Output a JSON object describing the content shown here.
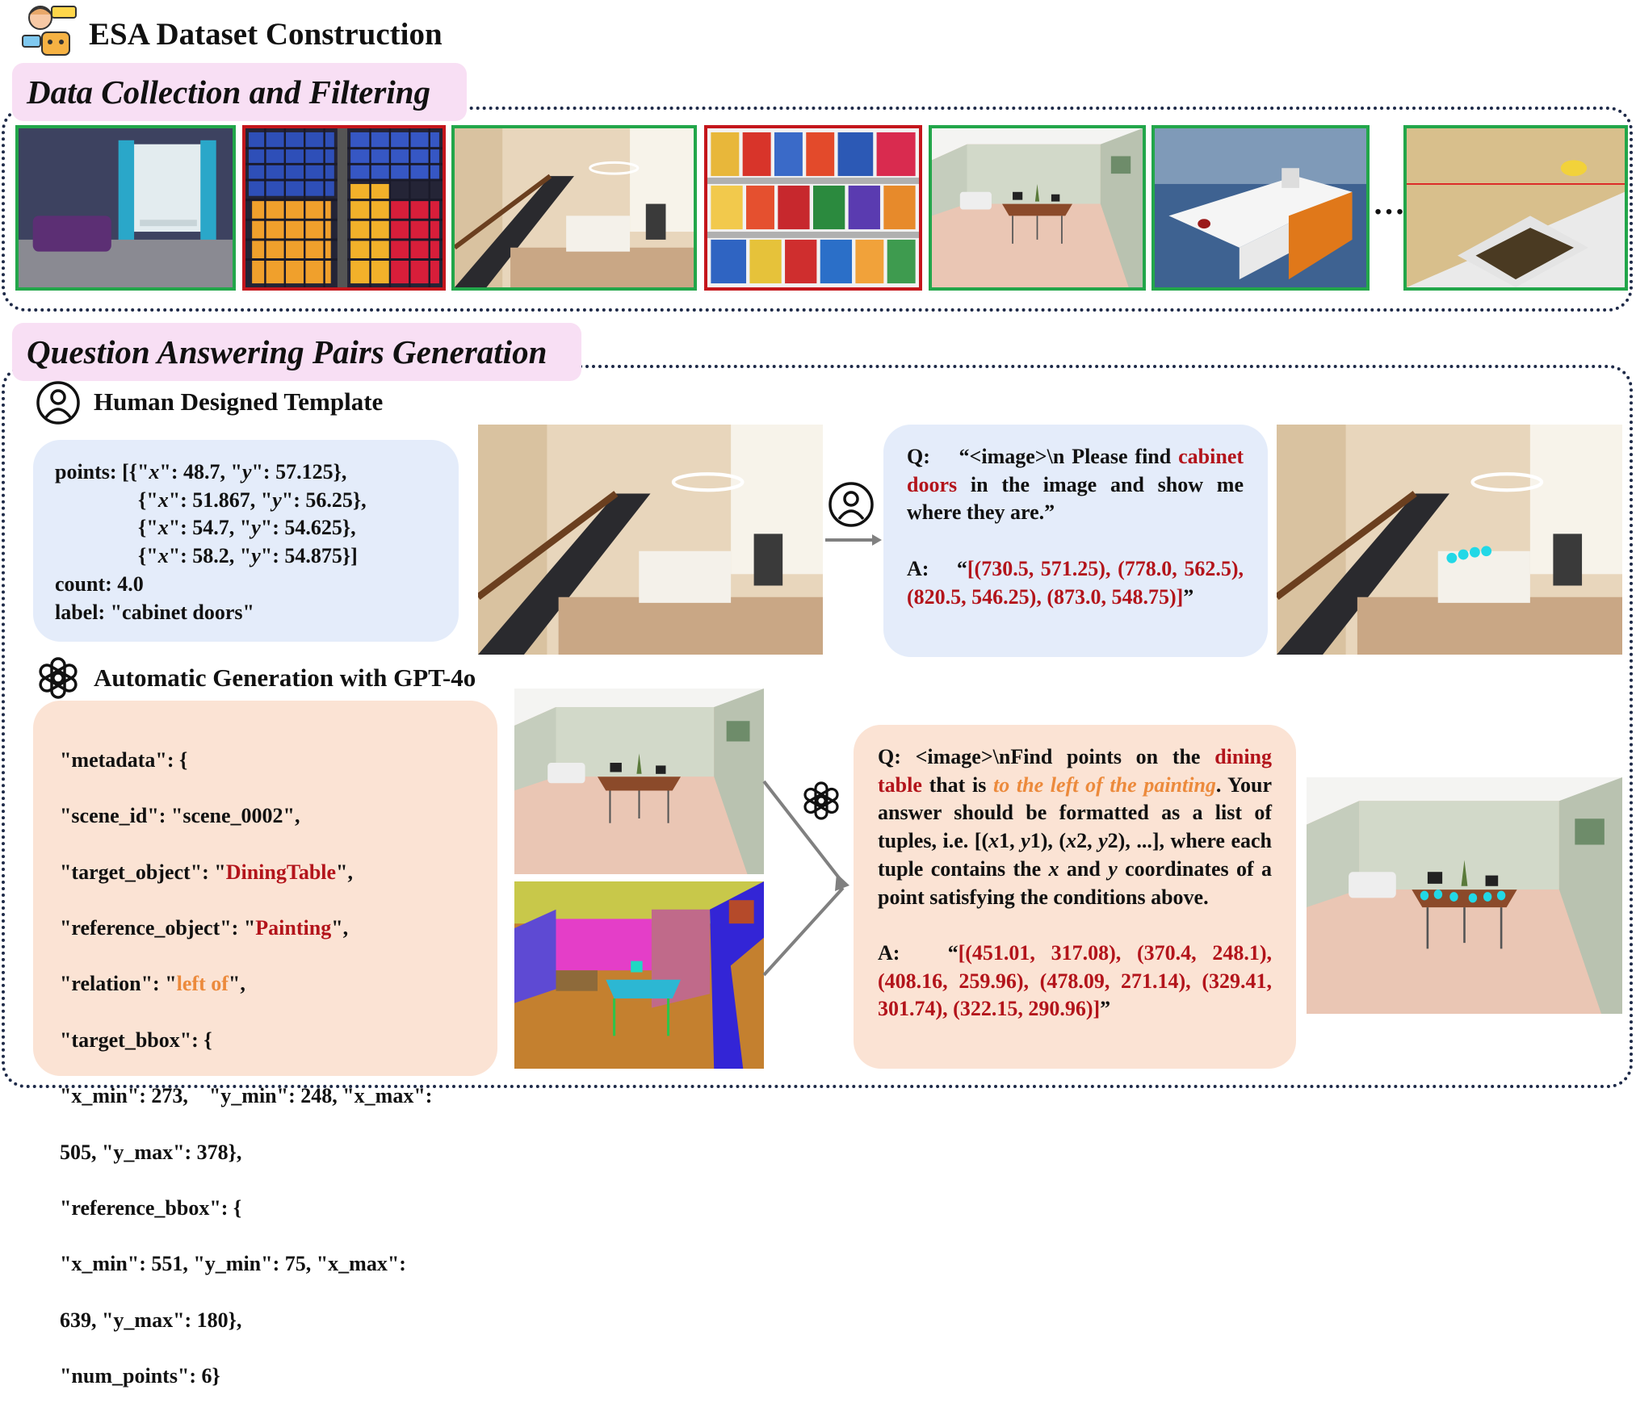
{
  "header": {
    "title": "ESA Dataset Construction"
  },
  "collection": {
    "title": "Data Collection and Filtering",
    "ellipsis": "…"
  },
  "qa": {
    "title": "Question Answering Pairs Generation",
    "template": {
      "title": "Human Designed Template",
      "code": [
        [
          "points: [{\"",
          "x",
          "\": 48.7, \"",
          "y",
          "\": 57.125},"
        ],
        [
          "{\"",
          "x",
          "\": 51.867, \"",
          "y",
          "\": 56.25},"
        ],
        [
          "{\"",
          "x",
          "\": 54.7, \"",
          "y",
          "\": 54.625},"
        ],
        [
          "{\"",
          "x",
          "\": 58.2, \"",
          "y",
          "\": 54.875}]"
        ],
        [
          "count: 4.0"
        ],
        [
          "label: \"cabinet doors\""
        ]
      ],
      "question": [
        "Q:",
        "“<image>\\n Please find",
        "cabinet doors",
        "in the image and show me where they are.”"
      ],
      "answer": [
        "A:",
        "“",
        "[(730.5, 571.25), (778.0, 562.5), (820.5, 546.25), (873.0, 548.75)]",
        "”"
      ]
    },
    "gpt": {
      "title": "Automatic Generation with GPT-4o",
      "code": [
        [
          "\"metadata\": {"
        ],
        [
          "\"scene_id\": \"scene_0002\","
        ],
        [
          "\"target_object\": \"",
          "DiningTable",
          "\","
        ],
        [
          "\"reference_object\": \"",
          "Painting",
          "\","
        ],
        [
          "\"relation\": \"",
          "left of",
          "\","
        ],
        [
          "\"target_bbox\": {"
        ],
        [
          "\"x_min\": 273,    \"y_min\": 248, \"x_max\":"
        ],
        [
          "505, \"y_max\": 378},"
        ],
        [
          "\"reference_bbox\": {"
        ],
        [
          "\"x_min\": 551, \"y_min\": 75, \"x_max\":"
        ],
        [
          "639, \"y_max\": 180},"
        ],
        [
          "\"num_points\": 6}"
        ]
      ],
      "question": [
        "Q:",
        "<image>\\nFind points on the",
        "dining table",
        "that is",
        "to the left of the painting",
        ". Your answer should be formatted as a list of tuples, i.e. [(",
        "x",
        "1, ",
        "y",
        "1), (",
        "x",
        "2, ",
        "y",
        "2), ...], where each tuple contains the",
        "x",
        "and",
        "y",
        "coordinates of a point satisfying the conditions above."
      ],
      "answer": [
        "A:",
        "“",
        "[(451.01, 317.08), (370.4, 248.1), (408.16, 259.96), (478.09, 271.14), (329.41, 301.74), (322.15, 290.96)]",
        "”"
      ]
    }
  }
}
